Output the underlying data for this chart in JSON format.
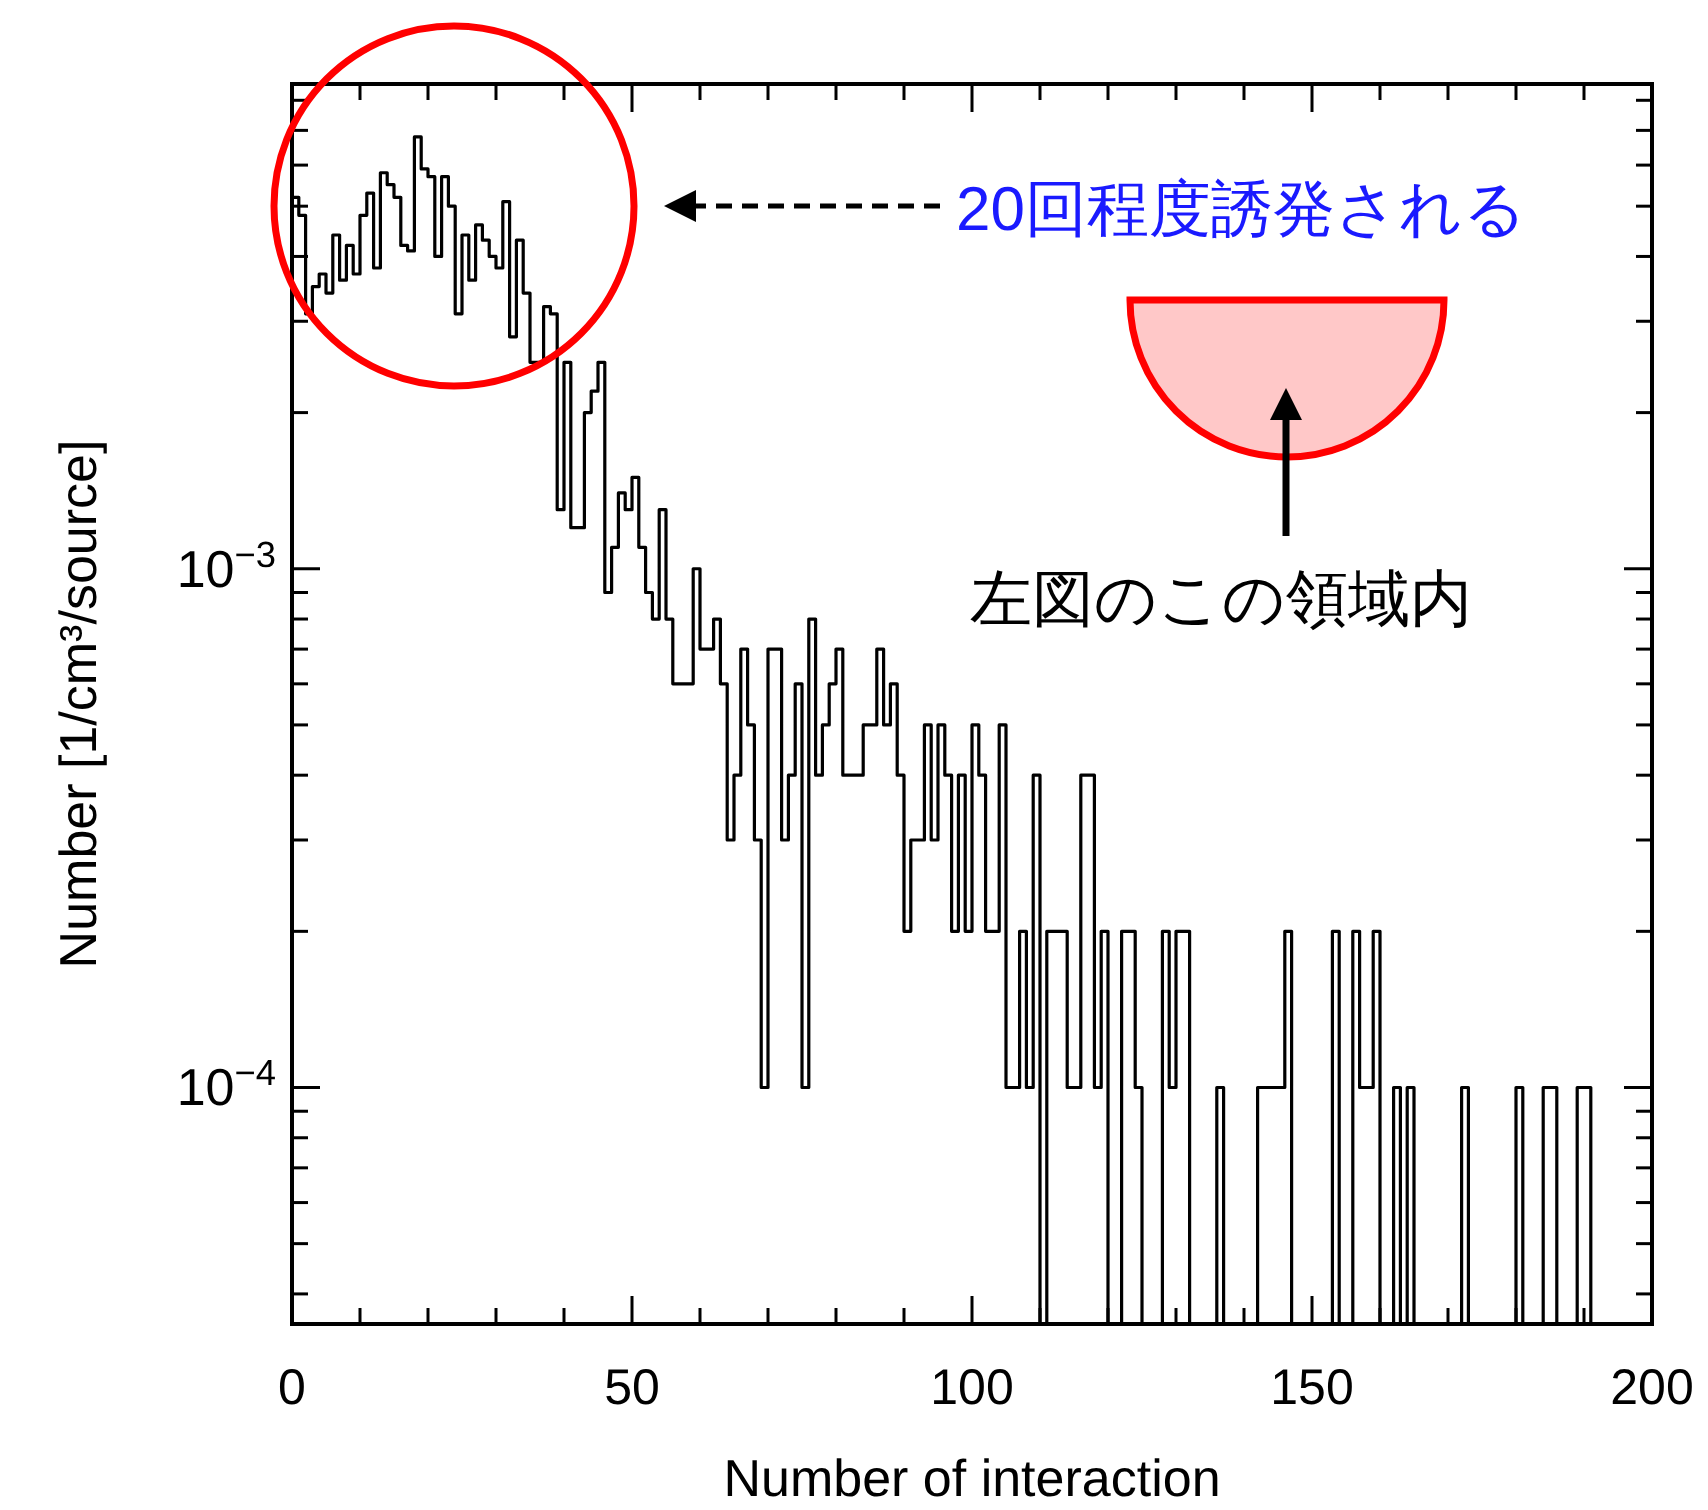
{
  "chart_data": {
    "type": "histogram",
    "xlabel": "Number of interaction",
    "ylabel": "Number [1/cm³/source]",
    "log": "y",
    "color": "#000000",
    "bins": [
      0,
      1,
      2,
      3,
      4,
      5,
      6,
      7,
      8,
      9,
      10,
      11,
      12,
      13,
      14,
      15,
      16,
      17,
      18,
      19,
      20,
      21,
      22,
      23,
      24,
      25,
      26,
      27,
      28,
      29,
      30,
      31,
      32,
      33,
      34,
      35,
      36,
      37,
      38,
      39,
      40,
      41,
      42,
      43,
      44,
      45,
      46,
      47,
      48,
      49,
      50,
      51,
      52,
      53,
      54,
      55,
      56,
      57,
      58,
      59,
      60,
      61,
      62,
      63,
      64,
      65,
      66,
      67,
      68,
      69,
      70,
      71,
      72,
      73,
      74,
      75,
      76,
      77,
      78,
      79,
      80,
      81,
      82,
      83,
      84,
      85,
      86,
      87,
      88,
      89,
      90,
      91,
      92,
      93,
      94,
      95,
      96,
      97,
      98,
      99,
      100,
      101,
      102,
      103,
      104,
      105,
      106,
      107,
      108,
      109,
      110,
      111,
      112,
      113,
      114,
      115,
      116,
      117,
      118,
      119,
      120,
      121,
      122,
      123,
      124,
      125,
      126,
      127,
      128,
      129,
      130,
      131,
      132,
      133,
      134,
      135,
      136,
      137,
      138,
      139,
      140,
      141,
      142,
      143,
      144,
      145,
      146,
      147,
      148,
      149,
      150,
      151,
      152,
      153,
      154,
      155,
      156,
      157,
      158,
      159,
      160,
      161,
      162,
      163,
      164,
      165,
      166,
      167,
      168,
      169,
      170,
      171,
      172,
      173,
      174,
      175,
      176,
      177,
      178,
      179,
      180,
      181,
      182,
      183,
      184,
      185,
      186,
      187,
      188,
      189,
      190,
      191
    ],
    "values": [
      0.0052,
      0.0048,
      0.0031,
      0.0035,
      0.0037,
      0.0034,
      0.0044,
      0.0036,
      0.0042,
      0.0037,
      0.0048,
      0.0053,
      0.0038,
      0.0058,
      0.0055,
      0.0052,
      0.0042,
      0.0041,
      0.0068,
      0.0059,
      0.0057,
      0.004,
      0.0057,
      0.005,
      0.0031,
      0.0044,
      0.0036,
      0.0046,
      0.0043,
      0.004,
      0.0038,
      0.0051,
      0.0028,
      0.0043,
      0.0034,
      0.0025,
      0.0025,
      0.0032,
      0.0031,
      0.0013,
      0.0025,
      0.0012,
      0.0012,
      0.002,
      0.0022,
      0.0025,
      0.0009,
      0.0011,
      0.0014,
      0.0013,
      0.0015,
      0.0011,
      0.0009,
      0.0008,
      0.0013,
      0.0008,
      0.0006,
      0.0006,
      0.0006,
      0.001,
      0.0007,
      0.0007,
      0.0008,
      0.0006,
      0.0003,
      0.0004,
      0.0007,
      0.0005,
      0.0003,
      0.0001,
      0.0007,
      0.0007,
      0.0003,
      0.0004,
      0.0006,
      0.0001,
      0.0008,
      0.0004,
      0.0005,
      0.0006,
      0.0007,
      0.0004,
      0.0004,
      0.0004,
      0.0005,
      0.0005,
      0.0007,
      0.0005,
      0.0006,
      0.0004,
      0.0002,
      0.0003,
      0.0003,
      0.0005,
      0.0003,
      0.0005,
      0.0004,
      0.0002,
      0.0004,
      0.0002,
      0.0005,
      0.0004,
      0.0002,
      0.0002,
      0.0005,
      0.0001,
      0.0001,
      0.0002,
      0.0001,
      0.0004,
      null,
      0.0002,
      0.0002,
      0.0002,
      0.0001,
      0.0001,
      0.0004,
      0.0004,
      0.0001,
      0.0002,
      null,
      null,
      0.0002,
      0.0002,
      0.0001,
      null,
      null,
      null,
      0.0002,
      0.0001,
      0.0002,
      0.0002,
      null,
      null,
      null,
      null,
      0.0001,
      null,
      null,
      null,
      null,
      null,
      0.0001,
      0.0001,
      0.0001,
      0.0001,
      0.0002,
      null,
      null,
      null,
      null,
      null,
      null,
      0.0002,
      null,
      null,
      0.0002,
      0.0001,
      0.0001,
      0.0002,
      null,
      null,
      0.0001,
      null,
      0.0001,
      null,
      null,
      null,
      null,
      null,
      null,
      null,
      0.0001,
      null,
      null,
      null,
      null,
      null,
      null,
      null,
      0.0001,
      null,
      null,
      null,
      0.0001,
      0.0001,
      null,
      null,
      null,
      0.0001,
      0.0001
    ],
    "xlim": [
      0,
      200
    ],
    "xticks": [
      0,
      {
        "value": 10,
        "label": null
      },
      {
        "value": 20,
        "label": null
      },
      {
        "value": 30,
        "label": null
      },
      {
        "value": 40,
        "label": null
      },
      50,
      {
        "value": 60,
        "label": null
      },
      {
        "value": 70,
        "label": null
      },
      {
        "value": 80,
        "label": null
      },
      {
        "value": 90,
        "label": null
      },
      100,
      {
        "value": 110,
        "label": null
      },
      {
        "value": 120,
        "label": null
      },
      {
        "value": 130,
        "label": null
      },
      {
        "value": 140,
        "label": null
      },
      150,
      {
        "value": 160,
        "label": null
      },
      {
        "value": 170,
        "label": null
      },
      {
        "value": 180,
        "label": null
      },
      {
        "value": 190,
        "label": null
      },
      200
    ],
    "ylim": [
      3.5e-05,
      0.0086
    ],
    "yticks": [
      {
        "value": 4e-05,
        "label": null
      },
      {
        "value": 5e-05,
        "label": null
      },
      {
        "value": 6e-05,
        "label": null
      },
      {
        "value": 7e-05,
        "label": null
      },
      {
        "value": 8e-05,
        "label": null
      },
      {
        "value": 9e-05,
        "label": null
      },
      {
        "value": 0.0001,
        "label": "10$^{−4}$"
      },
      {
        "value": 0.0002,
        "label": null
      },
      {
        "value": 0.0003,
        "label": null
      },
      {
        "value": 0.0004,
        "label": null
      },
      {
        "value": 0.0005,
        "label": null
      },
      {
        "value": 0.0006,
        "label": null
      },
      {
        "value": 0.0007,
        "label": null
      },
      {
        "value": 0.0008,
        "label": null
      },
      {
        "value": 0.0009,
        "label": null
      },
      {
        "value": 0.001,
        "label": "10$^{−3}$"
      },
      {
        "value": 0.002,
        "label": null
      },
      {
        "value": 0.003,
        "label": null
      },
      {
        "value": 0.004,
        "label": null
      },
      {
        "value": 0.005,
        "label": null
      },
      {
        "value": 0.006,
        "label": null
      },
      {
        "value": 0.007,
        "label": null
      },
      {
        "value": 0.008,
        "label": null
      }
    ],
    "annotations": [
      "20回程度誘発される",
      "左図のこの領域内"
    ]
  }
}
